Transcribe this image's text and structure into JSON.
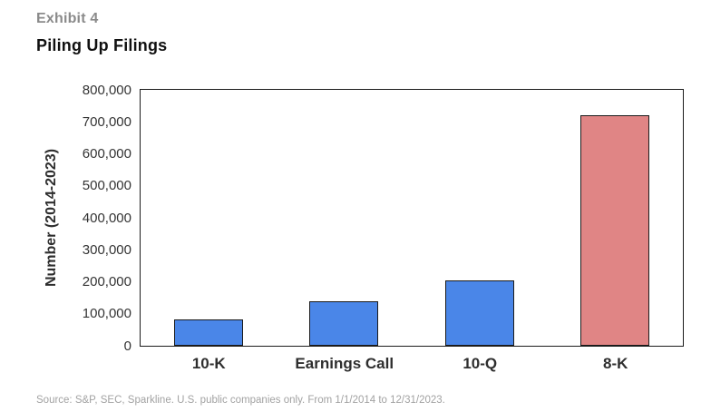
{
  "header": {
    "exhibit_label": "Exhibit 4",
    "title": "Piling Up Filings"
  },
  "footer": {
    "source": "Source: S&P, SEC, Sparkline. U.S. public companies only. From 1/1/2014 to 12/31/2023."
  },
  "colors": {
    "bar_blue": "#4a86e8",
    "bar_red": "#e08585",
    "bar_edge": "#1b1b1b",
    "axis_text": "#333333",
    "exhibit_gray": "#8a8a8a",
    "source_gray": "#a2a2a2"
  },
  "chart_data": {
    "type": "bar",
    "title": "Piling Up Filings",
    "categories": [
      "10-K",
      "Earnings Call",
      "10-Q",
      "8-K"
    ],
    "values": [
      82000,
      140000,
      205000,
      722000
    ],
    "bar_colors": [
      "#4a86e8",
      "#4a86e8",
      "#4a86e8",
      "#e08585"
    ],
    "xlabel": "",
    "ylabel": "Number (2014-2023)",
    "ylim": [
      0,
      800000
    ],
    "ytick_step": 100000,
    "ytick_labels": [
      "0",
      "100,000",
      "200,000",
      "300,000",
      "400,000",
      "500,000",
      "600,000",
      "700,000",
      "800,000"
    ],
    "grid": false,
    "legend": "none"
  }
}
